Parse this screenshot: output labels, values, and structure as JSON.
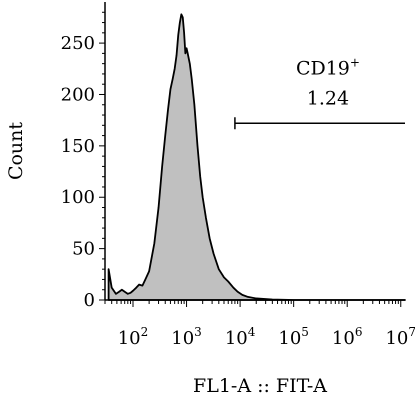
{
  "chart_data": {
    "type": "area",
    "xlabel": "FL1-A :: FIT-A",
    "ylabel": "Count",
    "x_scale": "log",
    "xlim": [
      30,
      12000000
    ],
    "ylim": [
      0,
      290
    ],
    "y_ticks": [
      0,
      50,
      100,
      150,
      200,
      250
    ],
    "x_ticks": [
      {
        "value": 100,
        "base": "10",
        "exp": "2"
      },
      {
        "value": 1000,
        "base": "10",
        "exp": "3"
      },
      {
        "value": 10000,
        "base": "10",
        "exp": "4"
      },
      {
        "value": 100000,
        "base": "10",
        "exp": "5"
      },
      {
        "value": 1000000,
        "base": "10",
        "exp": "6"
      },
      {
        "value": 10000000,
        "base": "10",
        "exp": "7"
      }
    ],
    "series": [
      {
        "fill": "#c0c0c0",
        "stroke": "#000000",
        "points": [
          [
            35,
            30
          ],
          [
            40,
            12
          ],
          [
            48,
            6
          ],
          [
            55,
            8
          ],
          [
            62,
            10
          ],
          [
            70,
            8
          ],
          [
            80,
            6
          ],
          [
            90,
            7
          ],
          [
            100,
            9
          ],
          [
            115,
            12
          ],
          [
            130,
            15
          ],
          [
            150,
            14
          ],
          [
            170,
            20
          ],
          [
            200,
            28
          ],
          [
            250,
            55
          ],
          [
            300,
            90
          ],
          [
            350,
            130
          ],
          [
            400,
            160
          ],
          [
            450,
            185
          ],
          [
            500,
            205
          ],
          [
            550,
            215
          ],
          [
            600,
            225
          ],
          [
            650,
            238
          ],
          [
            700,
            258
          ],
          [
            750,
            270
          ],
          [
            800,
            278
          ],
          [
            850,
            275
          ],
          [
            900,
            260
          ],
          [
            950,
            240
          ],
          [
            1000,
            245
          ],
          [
            1050,
            240
          ],
          [
            1150,
            230
          ],
          [
            1250,
            215
          ],
          [
            1400,
            190
          ],
          [
            1600,
            150
          ],
          [
            1800,
            120
          ],
          [
            2000,
            100
          ],
          [
            2300,
            80
          ],
          [
            2700,
            60
          ],
          [
            3200,
            45
          ],
          [
            4000,
            30
          ],
          [
            5000,
            22
          ],
          [
            6000,
            18
          ],
          [
            7500,
            12
          ],
          [
            9000,
            8
          ],
          [
            11000,
            5
          ],
          [
            14000,
            3
          ],
          [
            20000,
            1.5
          ],
          [
            40000,
            0.5
          ],
          [
            100000,
            0
          ],
          [
            12000000,
            0
          ]
        ]
      }
    ],
    "gate": {
      "label": "CD19",
      "label_sup": "+",
      "value": "1.24",
      "x_start": 8000,
      "x_end": 12000000,
      "y": 172
    }
  }
}
